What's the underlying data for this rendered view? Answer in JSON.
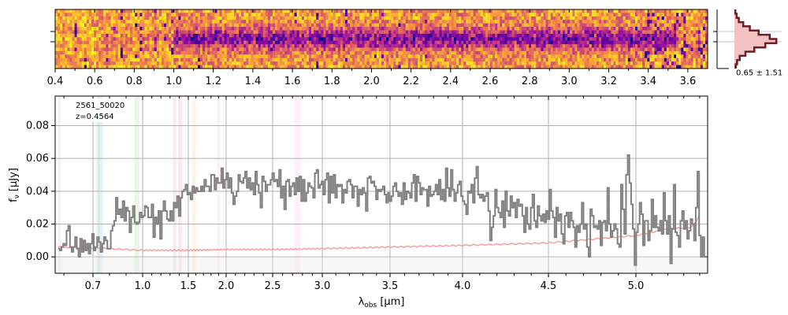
{
  "chart_data": [
    {
      "name": "spectrum-2d",
      "type": "heatmap",
      "colormap": "plasma",
      "x_tick_labels": [
        "0.4",
        "0.6",
        "0.8",
        "1.0",
        "1.2",
        "1.4",
        "1.6",
        "1.8",
        "2.0",
        "2.2",
        "2.4",
        "2.6",
        "2.8",
        "3.0",
        "3.2",
        "3.4",
        "3.6"
      ],
      "x_tick_values": [
        0.4,
        0.6,
        0.8,
        1.0,
        1.2,
        1.4,
        1.6,
        1.8,
        2.0,
        2.2,
        2.4,
        2.6,
        2.8,
        3.0,
        3.2,
        3.4,
        3.6
      ],
      "xlim": [
        0.4,
        3.7
      ],
      "trace_profile": [
        0.05,
        0.06,
        0.08,
        0.12,
        0.2,
        0.35,
        0.6,
        0.85,
        1.0,
        0.85,
        0.6,
        0.35,
        0.2,
        0.12,
        0.08,
        0.06,
        0.05
      ],
      "noisy_columns_fraction": 0.12
    },
    {
      "name": "profile-histogram",
      "type": "line",
      "annotation": "0.65 ± 1.51",
      "x": [
        0.02,
        0.05,
        0.1,
        0.2,
        0.35,
        0.55,
        0.8,
        0.95,
        0.7,
        0.45,
        0.25,
        0.12,
        0.06,
        0.03
      ],
      "colors": {
        "fill": "#f4c2c2",
        "line": "#6b1f24"
      }
    },
    {
      "name": "spectrum-1d",
      "type": "line",
      "ylabel": "f_ν [μJy]",
      "xlabel": "λ_obs [μm]",
      "annotations": [
        "2561_50020",
        "z=0.4564"
      ],
      "x_tick_labels": [
        "0.7",
        "1.0",
        "1.5",
        "2.0",
        "2.5",
        "3.0",
        "3.5",
        "4.0",
        "4.5",
        "5.0"
      ],
      "x_tick_values": [
        0.7,
        1.0,
        1.5,
        2.0,
        2.5,
        3.0,
        3.5,
        4.0,
        4.5,
        5.0
      ],
      "y_tick_labels": [
        "0.00",
        "0.02",
        "0.04",
        "0.06",
        "0.08"
      ],
      "y_tick_values": [
        0.0,
        0.02,
        0.04,
        0.06,
        0.08
      ],
      "xlim": [
        0.57,
        5.45
      ],
      "ylim": [
        -0.01,
        0.098
      ],
      "grid": true,
      "series": [
        {
          "values_x_start": 0.58,
          "values_x_end": 5.45,
          "flux": [
            0.005,
            0.004,
            0.006,
            0.008,
            0.007,
            0.016,
            0.019,
            0.006,
            0.003,
            0.006,
            0.012,
            0.005,
            0.0,
            0.011,
            0.003,
            0.01,
            0.004,
            0.008,
            0.002,
            0.008,
            0.014,
            0.004,
            0.006,
            0.012,
            0.009,
            0.003,
            0.008,
            0.012,
            0.01,
            0.005,
            0.005,
            0.016,
            0.019,
            0.022,
            0.036,
            0.026,
            0.029,
            0.024,
            0.034,
            0.022,
            0.03,
            0.028,
            0.015,
            0.024,
            0.031,
            0.021,
            0.02,
            0.021,
            0.027,
            0.024,
            0.025,
            0.031,
            0.03,
            0.024,
            0.024,
            0.032,
            0.012,
            0.024,
            0.02,
            0.028,
            0.011,
            0.028,
            0.034,
            0.028,
            0.023,
            0.022,
            0.028,
            0.022,
            0.033,
            0.03,
            0.037,
            0.025,
            0.036,
            0.04,
            0.041,
            0.044,
            0.038,
            0.039,
            0.035,
            0.043,
            0.039,
            0.042,
            0.04,
            0.04,
            0.043,
            0.04,
            0.047,
            0.043,
            0.043,
            0.04,
            0.05,
            0.05,
            0.041,
            0.048,
            0.045,
            0.045,
            0.054,
            0.042,
            0.047,
            0.051,
            0.042,
            0.048,
            0.039,
            0.032,
            0.037,
            0.04,
            0.05,
            0.046,
            0.045,
            0.048,
            0.052,
            0.042,
            0.048,
            0.041,
            0.045,
            0.038,
            0.052,
            0.044,
            0.039,
            0.03,
            0.049,
            0.046,
            0.04,
            0.044,
            0.044,
            0.047,
            0.051,
            0.046,
            0.047,
            0.043,
            0.053,
            0.036,
            0.043,
            0.029,
            0.046,
            0.047,
            0.037,
            0.043,
            0.045,
            0.038,
            0.048,
            0.04,
            0.049,
            0.034,
            0.047,
            0.034,
            0.039,
            0.045,
            0.043,
            0.042,
            0.036,
            0.051,
            0.053,
            0.042,
            0.044,
            0.046,
            0.038,
            0.047,
            0.051,
            0.033,
            0.049,
            0.039,
            0.05,
            0.036,
            0.044,
            0.043,
            0.044,
            0.033,
            0.041,
            0.039,
            0.046,
            0.047,
            0.044,
            0.036,
            0.043,
            0.043,
            0.031,
            0.041,
            0.038,
            0.042,
            0.039,
            0.028,
            0.048,
            0.049,
            0.045,
            0.046,
            0.043,
            0.035,
            0.041,
            0.04,
            0.041,
            0.043,
            0.038,
            0.033,
            0.039,
            0.034,
            0.037,
            0.043,
            0.045,
            0.04,
            0.037,
            0.039,
            0.032,
            0.045,
            0.035,
            0.04,
            0.039,
            0.036,
            0.045,
            0.05,
            0.034,
            0.049,
            0.045,
            0.038,
            0.042,
            0.041,
            0.041,
            0.031,
            0.043,
            0.037,
            0.038,
            0.04,
            0.044,
            0.038,
            0.047,
            0.035,
            0.041,
            0.034,
            0.054,
            0.042,
            0.037,
            0.053,
            0.041,
            0.034,
            0.039,
            0.044,
            0.046,
            0.037,
            0.034,
            0.032,
            0.026,
            0.04,
            0.039,
            0.044,
            0.033,
            0.048,
            0.055,
            0.038,
            0.036,
            0.038,
            0.034,
            0.037,
            0.039,
            0.028,
            0.01,
            0.018,
            0.025,
            0.041,
            0.03,
            0.027,
            0.024,
            0.034,
            0.018,
            0.04,
            0.028,
            0.025,
            0.037,
            0.03,
            0.033,
            0.024,
            0.035,
            0.031,
            0.032,
            0.025,
            0.015,
            0.03,
            0.02,
            0.017,
            0.03,
            0.038,
            0.022,
            0.018,
            0.031,
            0.025,
            0.022,
            0.026,
            0.021,
            0.028,
            0.023,
            0.041,
            0.028,
            0.024,
            0.012,
            0.03,
            0.022,
            0.026,
            0.014,
            0.008,
            0.025,
            0.027,
            0.018,
            0.027,
            0.022,
            0.018,
            0.006,
            0.019,
            0.015,
            0.02,
            0.033,
            0.017,
            0.02,
            0.006,
            0.0,
            0.029,
            0.025,
            0.018,
            0.019,
            0.017,
            0.022,
            0.007,
            0.021,
            0.022,
            0.016,
            0.042,
            0.02,
            0.012,
            0.016,
            0.02,
            0.017,
            0.008,
            0.006,
            0.044,
            0.029,
            0.014,
            0.05,
            0.062,
            0.045,
            0.032,
            0.017,
            -0.005,
            0.015,
            0.02,
            0.033,
            0.026,
            0.007,
            0.022,
            0.022,
            0.01,
            0.016,
            0.035,
            0.018,
            0.025,
            0.018,
            0.016,
            0.022,
            0.014,
            0.039,
            0.022,
            0.014,
            0.025,
            -0.004,
            0.017,
            0.044,
            0.015,
            0.013,
            0.006,
            0.022,
            0.028,
            0.017,
            0.022,
            0.011,
            0.016,
            0.023,
            0.02,
            0.01,
            0.03,
            0.052,
            0.013,
            0.0,
            0.012,
            0.0,
            0.0
          ]
        },
        {
          "kind": "error",
          "error_anchors_x": [
            0.58,
            1.0,
            1.5,
            2.0,
            2.5,
            3.0,
            3.5,
            4.0,
            4.5,
            5.0,
            5.2,
            5.35,
            5.4
          ],
          "error_anchors_y": [
            0.006,
            0.004,
            0.004,
            0.0045,
            0.0045,
            0.005,
            0.006,
            0.007,
            0.0085,
            0.013,
            0.017,
            0.018,
            0.025
          ]
        }
      ],
      "emission_line_bands": [
        {
          "x0": 0.72,
          "x1": 0.74,
          "color": "#2ca02c"
        },
        {
          "x0": 0.73,
          "x1": 0.76,
          "color": "#1f77b4"
        },
        {
          "x0": 0.95,
          "x1": 0.98,
          "color": "#2ca02c"
        },
        {
          "x0": 1.33,
          "x1": 1.37,
          "color": "#8c564b"
        },
        {
          "x0": 1.39,
          "x1": 1.43,
          "color": "#d62728"
        },
        {
          "x0": 1.55,
          "x1": 1.6,
          "color": "#ff7f0e"
        },
        {
          "x0": 1.88,
          "x1": 1.92,
          "color": "#e377c2"
        },
        {
          "x0": 2.72,
          "x1": 2.78,
          "color": "#e377c2"
        },
        {
          "x0": 0.58,
          "x1": 0.59,
          "color": "#9467bd"
        }
      ],
      "colors": {
        "flux": "#808080",
        "error": "#f4a0a0",
        "grid": "#b0b0b0"
      }
    }
  ]
}
